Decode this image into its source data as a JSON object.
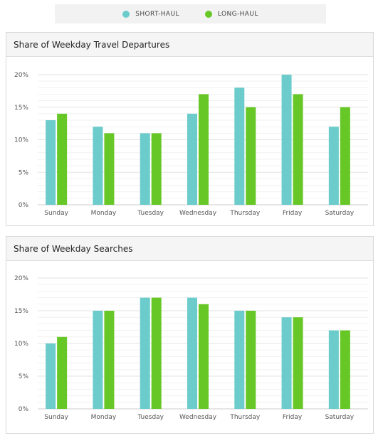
{
  "legend": {
    "items": [
      {
        "label": "SHORT-HAUL",
        "color": "#6ccbcb"
      },
      {
        "label": "LONG-HAUL",
        "color": "#66c726"
      }
    ]
  },
  "chart_data": [
    {
      "type": "bar",
      "title": "Share of Weekday Travel Departures",
      "categories": [
        "Sunday",
        "Monday",
        "Tuesday",
        "Wednesday",
        "Thursday",
        "Friday",
        "Saturday"
      ],
      "series": [
        {
          "name": "SHORT-HAUL",
          "values": [
            13,
            12,
            11,
            14,
            18,
            20,
            12
          ]
        },
        {
          "name": "LONG-HAUL",
          "values": [
            14,
            11,
            11,
            17,
            15,
            17,
            15
          ]
        }
      ],
      "ylim": [
        0,
        20
      ],
      "yticks": [
        "0%",
        "5%",
        "10%",
        "15%",
        "20%"
      ],
      "grid": true
    },
    {
      "type": "bar",
      "title": "Share of Weekday Searches",
      "categories": [
        "Sunday",
        "Monday",
        "Tuesday",
        "Wednesday",
        "Thursday",
        "Friday",
        "Saturday"
      ],
      "series": [
        {
          "name": "SHORT-HAUL",
          "values": [
            10,
            15,
            17,
            17,
            15,
            14,
            12
          ]
        },
        {
          "name": "LONG-HAUL",
          "values": [
            11,
            15,
            17,
            16,
            15,
            14,
            12
          ]
        }
      ],
      "ylim": [
        0,
        20
      ],
      "yticks": [
        "0%",
        "5%",
        "10%",
        "15%",
        "20%"
      ],
      "grid": true
    }
  ]
}
